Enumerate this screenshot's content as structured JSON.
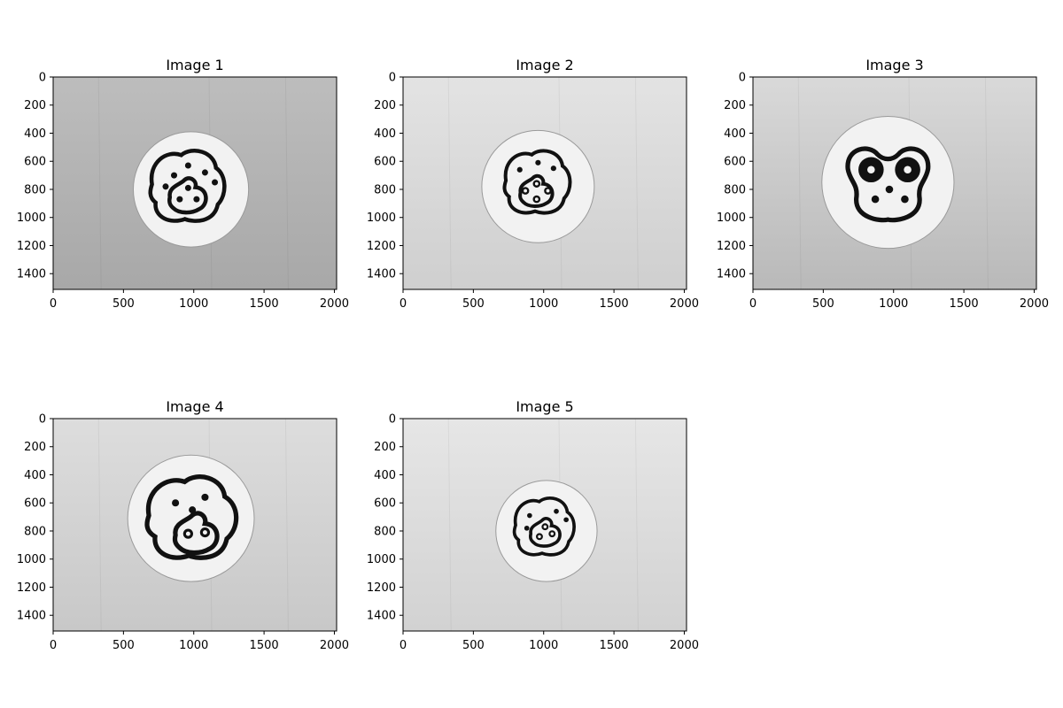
{
  "figure": {
    "background": "#ffffff",
    "colors": {
      "axis": "#000000",
      "paper": "#f2f2f2",
      "marker_ink": "#111111"
    }
  },
  "chart_data": [
    {
      "type": "image",
      "title": "Image 1",
      "xlim": [
        0,
        2016
      ],
      "ylim": [
        1512,
        0
      ],
      "xticks": [
        0,
        500,
        1000,
        1500,
        2000
      ],
      "yticks": [
        0,
        200,
        400,
        600,
        800,
        1000,
        1200,
        1400
      ],
      "image": {
        "bg_top": "#bdbdbd",
        "bg_bottom": "#a8a8a8",
        "disc": {
          "cx": 980,
          "cy": 800,
          "r": 410
        },
        "marker": {
          "shape": "paw",
          "cx": 950,
          "cy": 790,
          "size": 260,
          "outer_dots": [
            [
              800,
              780
            ],
            [
              860,
              700
            ],
            [
              960,
              630
            ],
            [
              1080,
              680
            ],
            [
              1150,
              750
            ]
          ],
          "inner_dots": [
            [
              960,
              790
            ],
            [
              900,
              870
            ],
            [
              1020,
              870
            ]
          ],
          "hollow_inner": false
        }
      }
    },
    {
      "type": "image",
      "title": "Image 2",
      "xlim": [
        0,
        2016
      ],
      "ylim": [
        1512,
        0
      ],
      "xticks": [
        0,
        500,
        1000,
        1500,
        2000
      ],
      "yticks": [
        0,
        200,
        400,
        600,
        800,
        1000,
        1200,
        1400
      ],
      "image": {
        "bg_top": "#e3e3e3",
        "bg_bottom": "#cfcfcf",
        "disc": {
          "cx": 960,
          "cy": 780,
          "r": 400
        },
        "marker": {
          "shape": "paw",
          "cx": 950,
          "cy": 760,
          "size": 230,
          "outer_dots": [
            [
              830,
              660
            ],
            [
              960,
              610
            ],
            [
              1070,
              650
            ]
          ],
          "inner_dots": [
            [
              950,
              760
            ],
            [
              870,
              810
            ],
            [
              1030,
              810
            ],
            [
              950,
              870
            ]
          ],
          "hollow_inner": true
        }
      }
    },
    {
      "type": "image",
      "title": "Image 3",
      "xlim": [
        0,
        2016
      ],
      "ylim": [
        1512,
        0
      ],
      "xticks": [
        0,
        500,
        1000,
        1500,
        2000
      ],
      "yticks": [
        0,
        200,
        400,
        600,
        800,
        1000,
        1200,
        1400
      ],
      "image": {
        "bg_top": "#d9d9d9",
        "bg_bottom": "#b9b9b9",
        "disc": {
          "cx": 960,
          "cy": 750,
          "r": 470
        },
        "marker": {
          "shape": "face",
          "cx": 960,
          "cy": 730,
          "size": 300,
          "eyes": [
            [
              840,
              660
            ],
            [
              1100,
              660
            ]
          ],
          "inner_dots": [
            [
              970,
              800
            ],
            [
              870,
              870
            ],
            [
              1080,
              870
            ]
          ]
        }
      }
    },
    {
      "type": "image",
      "title": "Image 4",
      "xlim": [
        0,
        2016
      ],
      "ylim": [
        1512,
        0
      ],
      "xticks": [
        0,
        500,
        1000,
        1500,
        2000
      ],
      "yticks": [
        0,
        200,
        400,
        600,
        800,
        1000,
        1200,
        1400
      ],
      "image": {
        "bg_top": "#dddddd",
        "bg_bottom": "#c8c8c8",
        "disc": {
          "cx": 980,
          "cy": 710,
          "r": 450
        },
        "marker": {
          "shape": "blob",
          "cx": 980,
          "cy": 720,
          "size": 300,
          "outer_dots": [
            [
              870,
              600
            ],
            [
              1080,
              560
            ],
            [
              990,
              650
            ]
          ],
          "inner_dots": [
            [
              960,
              820
            ],
            [
              1080,
              810
            ]
          ],
          "hollow_inner": true
        }
      }
    },
    {
      "type": "image",
      "title": "Image 5",
      "xlim": [
        0,
        2016
      ],
      "ylim": [
        1512,
        0
      ],
      "xticks": [
        0,
        500,
        1000,
        1500,
        2000
      ],
      "yticks": [
        0,
        200,
        400,
        600,
        800,
        1000,
        1200,
        1400
      ],
      "image": {
        "bg_top": "#e6e6e6",
        "bg_bottom": "#d2d2d2",
        "disc": {
          "cx": 1020,
          "cy": 800,
          "r": 360
        },
        "marker": {
          "shape": "paw",
          "cx": 1000,
          "cy": 780,
          "size": 210,
          "outer_dots": [
            [
              880,
              780
            ],
            [
              900,
              690
            ],
            [
              1090,
              660
            ],
            [
              1160,
              720
            ]
          ],
          "inner_dots": [
            [
              1010,
              770
            ],
            [
              970,
              840
            ],
            [
              1060,
              820
            ]
          ],
          "hollow_inner": true
        }
      }
    }
  ]
}
